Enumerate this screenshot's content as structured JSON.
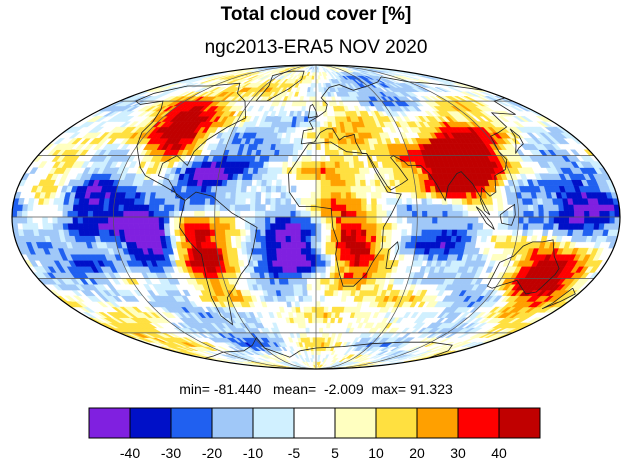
{
  "title": "Total cloud cover [%]",
  "subtitle": "ngc2013-ERA5 NOV 2020",
  "stats": {
    "min_label": "min=",
    "min_value": "-81.440",
    "mean_label": "mean=",
    "mean_value": "-2.009",
    "max_label": "max=",
    "max_value": "91.323"
  },
  "colorbar": {
    "colors": [
      "#8020e0",
      "#0010c8",
      "#2060f0",
      "#a0c8f8",
      "#d0f0ff",
      "#ffffff",
      "#ffffc0",
      "#ffe040",
      "#ffa000",
      "#ff0000",
      "#c00000"
    ],
    "labels": [
      "-40",
      "-30",
      "-20",
      "-10",
      "-5",
      "5",
      "10",
      "20",
      "30",
      "40"
    ]
  },
  "map": {
    "projection": "mollweide",
    "blobs": [
      {
        "lon": -100,
        "lat": 45,
        "v": 35
      },
      {
        "lon": -88,
        "lat": 38,
        "v": 25
      },
      {
        "lon": -115,
        "lat": 55,
        "v": 15
      },
      {
        "lon": -75,
        "lat": 15,
        "v": -35
      },
      {
        "lon": -60,
        "lat": 22,
        "v": -25
      },
      {
        "lon": -40,
        "lat": 30,
        "v": -15
      },
      {
        "lon": -130,
        "lat": 20,
        "v": -15
      },
      {
        "lon": -155,
        "lat": 35,
        "v": 10
      },
      {
        "lon": -140,
        "lat": 5,
        "v": -30
      },
      {
        "lon": -120,
        "lat": 0,
        "v": -20
      },
      {
        "lon": -160,
        "lat": 12,
        "v": 15
      },
      {
        "lon": -95,
        "lat": -12,
        "v": -38
      },
      {
        "lon": -105,
        "lat": -5,
        "v": -30
      },
      {
        "lon": -75,
        "lat": -8,
        "v": 35
      },
      {
        "lon": -70,
        "lat": -25,
        "v": 30
      },
      {
        "lon": -60,
        "lat": -12,
        "v": 15
      },
      {
        "lon": -140,
        "lat": -25,
        "v": -25
      },
      {
        "lon": -170,
        "lat": -20,
        "v": -20
      },
      {
        "lon": -120,
        "lat": -35,
        "v": 12
      },
      {
        "lon": -30,
        "lat": -30,
        "v": -20
      },
      {
        "lon": -20,
        "lat": -10,
        "v": -35
      },
      {
        "lon": -5,
        "lat": -18,
        "v": -30
      },
      {
        "lon": 20,
        "lat": -10,
        "v": 30
      },
      {
        "lon": 28,
        "lat": -22,
        "v": 25
      },
      {
        "lon": 15,
        "lat": 5,
        "v": 15
      },
      {
        "lon": 5,
        "lat": 20,
        "v": 12
      },
      {
        "lon": 20,
        "lat": 45,
        "v": 18
      },
      {
        "lon": 40,
        "lat": 50,
        "v": 15
      },
      {
        "lon": 60,
        "lat": 25,
        "v": 25
      },
      {
        "lon": 80,
        "lat": 22,
        "v": 45
      },
      {
        "lon": 90,
        "lat": 30,
        "v": 40
      },
      {
        "lon": 100,
        "lat": 20,
        "v": 30
      },
      {
        "lon": 110,
        "lat": 35,
        "v": 25
      },
      {
        "lon": 70,
        "lat": 35,
        "v": -15
      },
      {
        "lon": 45,
        "lat": 62,
        "v": -18
      },
      {
        "lon": 80,
        "lat": 65,
        "v": -12
      },
      {
        "lon": -30,
        "lat": 65,
        "v": 15
      },
      {
        "lon": -5,
        "lat": 55,
        "v": -12
      },
      {
        "lon": 120,
        "lat": 5,
        "v": -25
      },
      {
        "lon": 150,
        "lat": 0,
        "v": -35
      },
      {
        "lon": 170,
        "lat": 2,
        "v": -40
      },
      {
        "lon": 140,
        "lat": -25,
        "v": 35
      },
      {
        "lon": 150,
        "lat": -30,
        "v": 30
      },
      {
        "lon": 110,
        "lat": -15,
        "v": 15
      },
      {
        "lon": 85,
        "lat": -5,
        "v": -22
      },
      {
        "lon": 70,
        "lat": -15,
        "v": -18
      },
      {
        "lon": 60,
        "lat": 5,
        "v": -15
      },
      {
        "lon": 100,
        "lat": -30,
        "v": -15
      },
      {
        "lon": 170,
        "lat": -15,
        "v": 20
      },
      {
        "lon": 155,
        "lat": 30,
        "v": -15
      },
      {
        "lon": 130,
        "lat": 50,
        "v": 12
      },
      {
        "lon": -160,
        "lat": 55,
        "v": -12
      },
      {
        "lon": -50,
        "lat": -45,
        "v": 12
      },
      {
        "lon": 0,
        "lat": -40,
        "v": 10
      },
      {
        "lon": 60,
        "lat": -45,
        "v": 12
      },
      {
        "lon": 120,
        "lat": -45,
        "v": -15
      },
      {
        "lon": -100,
        "lat": -45,
        "v": -18
      },
      {
        "lon": -60,
        "lat": -62,
        "v": -25
      },
      {
        "lon": 60,
        "lat": -65,
        "v": -12
      },
      {
        "lon": -150,
        "lat": -60,
        "v": 15
      },
      {
        "lon": 0,
        "lat": -72,
        "v": 12
      },
      {
        "lon": -30,
        "lat": 45,
        "v": -10
      },
      {
        "lon": 160,
        "lat": -45,
        "v": 12
      }
    ]
  }
}
